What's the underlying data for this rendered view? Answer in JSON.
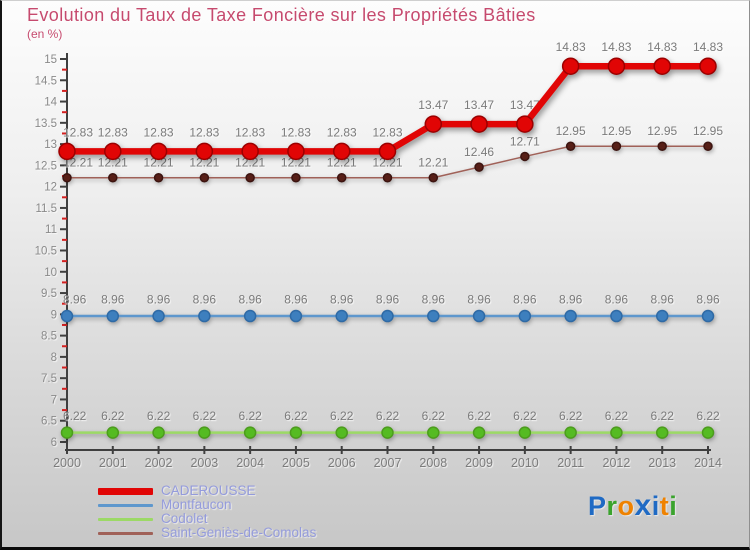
{
  "header": {
    "title": "Evolution du Taux de Taxe Foncière sur les Propriétés Bâties",
    "subtitle": "(en %)"
  },
  "chart_data": {
    "type": "line",
    "title": "Evolution du Taux de Taxe Foncière sur les Propriétés Bâties",
    "unit_label": "(en %)",
    "x": [
      2000,
      2001,
      2002,
      2003,
      2004,
      2005,
      2006,
      2007,
      2008,
      2009,
      2010,
      2011,
      2012,
      2013,
      2014
    ],
    "ylim": [
      6,
      15
    ],
    "y_major_step": 0.5,
    "y_minor_step": 0.25,
    "grid": false,
    "legend_position": "bottom-left",
    "axis_color": "#3f3f3f",
    "minor_tick_color": "#d32020",
    "label_color": "#7b7b7b",
    "series": [
      {
        "name": "CADEROUSSE",
        "line_color": "#e10505",
        "marker_fill": "#e10505",
        "marker_stroke": "#9c0000",
        "line_width": 6.5,
        "marker_radius": 8,
        "values": [
          12.83,
          12.83,
          12.83,
          12.83,
          12.83,
          12.83,
          12.83,
          12.83,
          13.47,
          13.47,
          13.47,
          14.83,
          14.83,
          14.83,
          14.83
        ]
      },
      {
        "name": "Montfaucon",
        "line_color": "#5e97cd",
        "marker_fill": "#3d7fbe",
        "marker_stroke": "#2f6aa5",
        "line_width": 2.5,
        "marker_radius": 5.5,
        "values": [
          8.96,
          8.96,
          8.96,
          8.96,
          8.96,
          8.96,
          8.96,
          8.96,
          8.96,
          8.96,
          8.96,
          8.96,
          8.96,
          8.96,
          8.96
        ]
      },
      {
        "name": "Codolet",
        "line_color": "#9cd966",
        "marker_fill": "#55bb22",
        "marker_stroke": "#4c9c1d",
        "line_width": 2.5,
        "marker_radius": 5.5,
        "values": [
          6.22,
          6.22,
          6.22,
          6.22,
          6.22,
          6.22,
          6.22,
          6.22,
          6.22,
          6.22,
          6.22,
          6.22,
          6.22,
          6.22,
          6.22
        ]
      },
      {
        "name": "Saint-Geniès-de-Comolas",
        "line_color": "#a06158",
        "marker_fill": "#571f17",
        "marker_stroke": "#3c1410",
        "line_width": 1.5,
        "marker_radius": 4,
        "values": [
          12.21,
          12.21,
          12.21,
          12.21,
          12.21,
          12.21,
          12.21,
          12.21,
          12.21,
          12.46,
          12.71,
          12.95,
          12.95,
          12.95,
          12.95
        ]
      }
    ]
  },
  "logo": {
    "name": "Proxiti",
    "letters": [
      {
        "ch": "P",
        "color": "#1f6ac4"
      },
      {
        "ch": "r",
        "color": "#3aa32d"
      },
      {
        "ch": "o",
        "color": "#ef8200"
      },
      {
        "ch": "x",
        "color": "#1f6ac4",
        "big": true
      },
      {
        "ch": "i",
        "color": "#1f6ac4"
      },
      {
        "ch": "t",
        "color": "#ef8200"
      },
      {
        "ch": "i",
        "color": "#3aa32d"
      }
    ]
  }
}
